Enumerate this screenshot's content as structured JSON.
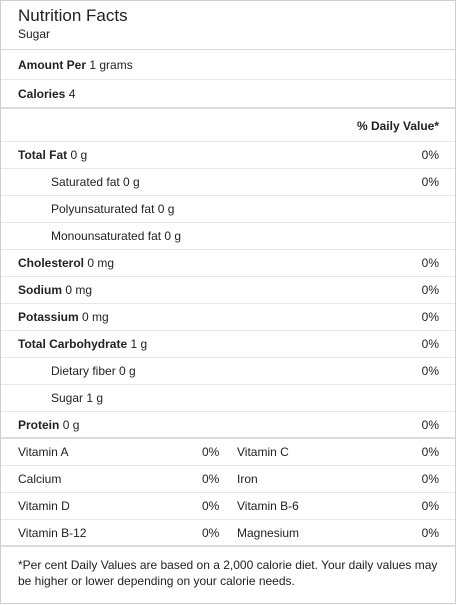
{
  "header": {
    "title": "Nutrition Facts",
    "subtitle": "Sugar"
  },
  "amount_per": {
    "label": "Amount Per",
    "value": "1 grams"
  },
  "calories": {
    "label": "Calories",
    "value": "4"
  },
  "daily_value_header": "% Daily Value*",
  "nutrients": {
    "total_fat": {
      "label": "Total Fat",
      "amount": "0 g",
      "pct": "0%"
    },
    "saturated_fat": {
      "label": "Saturated fat 0 g",
      "pct": "0%"
    },
    "polyunsaturated_fat": {
      "label": "Polyunsaturated fat 0 g"
    },
    "monounsaturated_fat": {
      "label": "Monounsaturated fat 0 g"
    },
    "cholesterol": {
      "label": "Cholesterol",
      "amount": "0 mg",
      "pct": "0%"
    },
    "sodium": {
      "label": "Sodium",
      "amount": "0 mg",
      "pct": "0%"
    },
    "potassium": {
      "label": "Potassium",
      "amount": "0 mg",
      "pct": "0%"
    },
    "total_carbohydrate": {
      "label": "Total Carbohydrate",
      "amount": "1 g",
      "pct": "0%"
    },
    "dietary_fiber": {
      "label": "Dietary fiber 0 g",
      "pct": "0%"
    },
    "sugar": {
      "label": "Sugar 1 g"
    },
    "protein": {
      "label": "Protein",
      "amount": "0 g",
      "pct": "0%"
    }
  },
  "vitamins": [
    {
      "left_name": "Vitamin A",
      "left_pct": "0%",
      "right_name": "Vitamin C",
      "right_pct": "0%"
    },
    {
      "left_name": "Calcium",
      "left_pct": "0%",
      "right_name": "Iron",
      "right_pct": "0%"
    },
    {
      "left_name": "Vitamin D",
      "left_pct": "0%",
      "right_name": "Vitamin B-6",
      "right_pct": "0%"
    },
    {
      "left_name": "Vitamin B-12",
      "left_pct": "0%",
      "right_name": "Magnesium",
      "right_pct": "0%"
    }
  ],
  "footnote": "*Per cent Daily Values are based on a 2,000 calorie diet. Your daily values may be higher or lower depending on your calorie needs."
}
